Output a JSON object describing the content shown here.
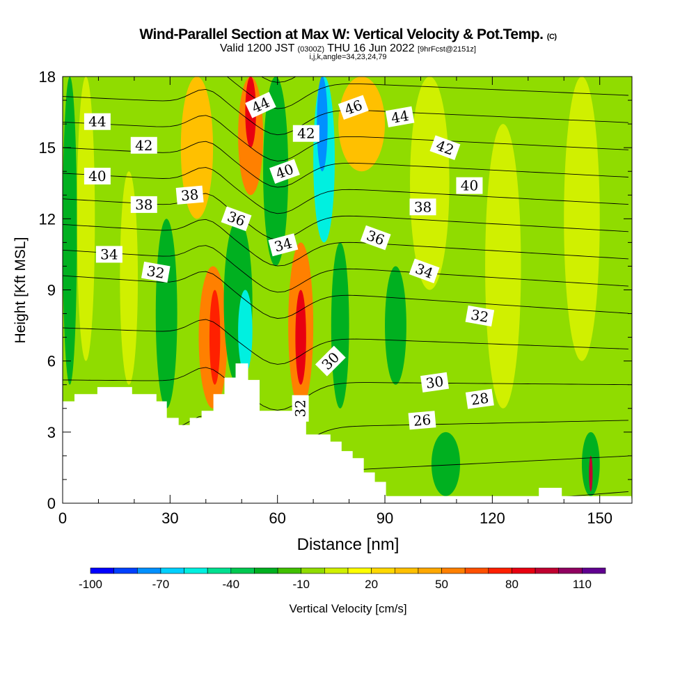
{
  "chart_data": {
    "type": "heatmap",
    "title": "Wind-Parallel Section at Max W: Vertical Velocity & Pot.Temp.",
    "title_suffix": "(C)",
    "subtitle_main": "Valid 1200 JST",
    "subtitle_utc": "(0300Z)",
    "subtitle_date": "THU 16 Jun 2022",
    "subtitle_fcst": "[9hrFcst@2151z]",
    "subtitle2": "i,j,k,angle=34,23,24,79",
    "xlabel": "Distance [nm]",
    "ylabel": "Height [Kft MSL]",
    "xlim": [
      0,
      159
    ],
    "ylim": [
      0,
      18
    ],
    "xticks": [
      "0",
      "30",
      "60",
      "90",
      "120",
      "150"
    ],
    "xtick_values": [
      0,
      30,
      60,
      90,
      120,
      150
    ],
    "yticks": [
      "0",
      "3",
      "6",
      "9",
      "12",
      "15",
      "18"
    ],
    "ytick_values": [
      0,
      3,
      6,
      9,
      12,
      15,
      18
    ],
    "colorbar": {
      "label": "Vertical Velocity [cm/s]",
      "min": -100,
      "max": 120,
      "step": 10,
      "tick_labels": [
        "-100",
        "-70",
        "-40",
        "-10",
        "20",
        "50",
        "80",
        "110"
      ],
      "tick_values": [
        -100,
        -70,
        -40,
        -10,
        20,
        50,
        80,
        110
      ],
      "colors": [
        "#0000ff",
        "#0040ff",
        "#0090ff",
        "#00d0ff",
        "#00f0e0",
        "#00e090",
        "#00c850",
        "#00b020",
        "#40c000",
        "#90dc00",
        "#d0f000",
        "#ffff00",
        "#ffd800",
        "#ffc000",
        "#ffa800",
        "#ff8000",
        "#ff5000",
        "#ff2000",
        "#e80010",
        "#c00030",
        "#900060",
        "#600090"
      ]
    },
    "vertical_velocity_background": -10,
    "vertical_velocity_regions": [
      {
        "x": [
          0,
          4
        ],
        "y": [
          5,
          18
        ],
        "w": -30
      },
      {
        "x": [
          4,
          9
        ],
        "y": [
          6,
          18
        ],
        "w": 0
      },
      {
        "x": [
          16,
          21
        ],
        "y": [
          5,
          14
        ],
        "w": 0
      },
      {
        "x": [
          26,
          32
        ],
        "y": [
          4,
          12
        ],
        "w": -30
      },
      {
        "x": [
          33,
          42
        ],
        "y": [
          12,
          18
        ],
        "w": 30
      },
      {
        "x": [
          38,
          46
        ],
        "y": [
          4,
          10
        ],
        "w": 50
      },
      {
        "x": [
          41,
          44
        ],
        "y": [
          5,
          9
        ],
        "w": 70
      },
      {
        "x": [
          45,
          53
        ],
        "y": [
          5,
          12
        ],
        "w": -30
      },
      {
        "x": [
          49,
          53
        ],
        "y": [
          5.5,
          9
        ],
        "w": -60
      },
      {
        "x": [
          49,
          56
        ],
        "y": [
          13,
          18
        ],
        "w": 50
      },
      {
        "x": [
          51,
          54
        ],
        "y": [
          15,
          18
        ],
        "w": 80
      },
      {
        "x": [
          56,
          63
        ],
        "y": [
          10,
          18
        ],
        "w": -30
      },
      {
        "x": [
          63,
          70
        ],
        "y": [
          4,
          11
        ],
        "w": 50
      },
      {
        "x": [
          65,
          68
        ],
        "y": [
          5,
          9
        ],
        "w": 80
      },
      {
        "x": [
          70,
          76
        ],
        "y": [
          11,
          18
        ],
        "w": -60
      },
      {
        "x": [
          71,
          74
        ],
        "y": [
          14,
          18
        ],
        "w": -80
      },
      {
        "x": [
          75,
          80
        ],
        "y": [
          4,
          11
        ],
        "w": -30
      },
      {
        "x": [
          77,
          90
        ],
        "y": [
          14,
          18
        ],
        "w": 30
      },
      {
        "x": [
          90,
          96
        ],
        "y": [
          5,
          10
        ],
        "w": -30
      },
      {
        "x": [
          97,
          108
        ],
        "y": [
          9,
          18
        ],
        "w": 0
      },
      {
        "x": [
          103,
          111
        ],
        "y": [
          0.3,
          3
        ],
        "w": -30
      },
      {
        "x": [
          118,
          128
        ],
        "y": [
          4,
          16
        ],
        "w": 0
      },
      {
        "x": [
          140,
          150
        ],
        "y": [
          6,
          18
        ],
        "w": 0
      },
      {
        "x": [
          145,
          150
        ],
        "y": [
          0.3,
          3
        ],
        "w": -30
      },
      {
        "x": [
          147,
          148
        ],
        "y": [
          0.5,
          2
        ],
        "w": 90
      }
    ],
    "theta_contours": {
      "unit": "C",
      "levels": [
        26,
        27,
        28,
        29,
        30,
        31,
        32,
        33,
        34,
        35,
        36,
        37,
        38,
        39,
        40,
        41,
        42,
        43,
        44,
        45,
        46,
        47
      ],
      "labels": [
        {
          "text": "44",
          "x": 9.7,
          "y": 16.1,
          "rot": 0
        },
        {
          "text": "42",
          "x": 22.7,
          "y": 15.1,
          "rot": 0
        },
        {
          "text": "40",
          "x": 9.7,
          "y": 13.8,
          "rot": 0
        },
        {
          "text": "38",
          "x": 22.7,
          "y": 12.6,
          "rot": 0
        },
        {
          "text": "38",
          "x": 35.5,
          "y": 13.0,
          "rot": -5
        },
        {
          "text": "36",
          "x": 48.5,
          "y": 12.0,
          "rot": 20
        },
        {
          "text": "34",
          "x": 13.0,
          "y": 10.5,
          "rot": 0
        },
        {
          "text": "32",
          "x": 26.0,
          "y": 9.75,
          "rot": 10
        },
        {
          "text": "44",
          "x": 55.3,
          "y": 16.8,
          "rot": -25
        },
        {
          "text": "42",
          "x": 68.0,
          "y": 15.6,
          "rot": 0
        },
        {
          "text": "40",
          "x": 62.0,
          "y": 14.0,
          "rot": -20
        },
        {
          "text": "34",
          "x": 61.6,
          "y": 10.9,
          "rot": -15
        },
        {
          "text": "46",
          "x": 81.2,
          "y": 16.7,
          "rot": -20
        },
        {
          "text": "44",
          "x": 94.2,
          "y": 16.3,
          "rot": -10
        },
        {
          "text": "42",
          "x": 106.8,
          "y": 15.0,
          "rot": 20
        },
        {
          "text": "40",
          "x": 113.6,
          "y": 13.4,
          "rot": 0
        },
        {
          "text": "38",
          "x": 100.6,
          "y": 12.5,
          "rot": 0
        },
        {
          "text": "36",
          "x": 87.4,
          "y": 11.2,
          "rot": 20
        },
        {
          "text": "34",
          "x": 101.0,
          "y": 9.8,
          "rot": 20
        },
        {
          "text": "32",
          "x": 116.5,
          "y": 7.9,
          "rot": 10
        },
        {
          "text": "30",
          "x": 74.8,
          "y": 6.0,
          "rot": -45
        },
        {
          "text": "30",
          "x": 103.9,
          "y": 5.1,
          "rot": -8
        },
        {
          "text": "28",
          "x": 116.5,
          "y": 4.4,
          "rot": -8
        },
        {
          "text": "26",
          "x": 100.4,
          "y": 3.5,
          "rot": -5
        },
        {
          "text": "32",
          "x": 66.4,
          "y": 4.0,
          "rot": -90
        }
      ]
    },
    "terrain_kft": [
      [
        0,
        4.3
      ],
      [
        3.3,
        4.3
      ],
      [
        3.3,
        4.6
      ],
      [
        9.7,
        4.6
      ],
      [
        9.7,
        4.9
      ],
      [
        19.4,
        4.9
      ],
      [
        19.4,
        4.6
      ],
      [
        26.2,
        4.6
      ],
      [
        26.2,
        4.3
      ],
      [
        29.1,
        4.3
      ],
      [
        29.1,
        3.6
      ],
      [
        32.4,
        3.6
      ],
      [
        32.4,
        3.3
      ],
      [
        35.5,
        3.3
      ],
      [
        35.5,
        3.6
      ],
      [
        38.8,
        3.6
      ],
      [
        38.8,
        3.9
      ],
      [
        42.1,
        3.9
      ],
      [
        42.1,
        4.6
      ],
      [
        45.2,
        4.6
      ],
      [
        45.2,
        5.3
      ],
      [
        48.3,
        5.3
      ],
      [
        48.3,
        5.9
      ],
      [
        51.8,
        5.9
      ],
      [
        51.8,
        5.2
      ],
      [
        55.0,
        5.2
      ],
      [
        55.0,
        3.9
      ],
      [
        68.0,
        3.9
      ],
      [
        68.0,
        2.9
      ],
      [
        74.8,
        2.9
      ],
      [
        74.8,
        2.6
      ],
      [
        77.9,
        2.6
      ],
      [
        77.9,
        2.2
      ],
      [
        81.0,
        2.2
      ],
      [
        81.0,
        1.9
      ],
      [
        84.1,
        1.9
      ],
      [
        84.1,
        1.3
      ],
      [
        87.2,
        1.3
      ],
      [
        87.2,
        0.9
      ],
      [
        90.3,
        0.9
      ],
      [
        90.3,
        0.3
      ],
      [
        133.0,
        0.3
      ],
      [
        133.0,
        0.65
      ],
      [
        139.4,
        0.65
      ],
      [
        139.4,
        0.3
      ],
      [
        158.8,
        0.3
      ]
    ]
  }
}
